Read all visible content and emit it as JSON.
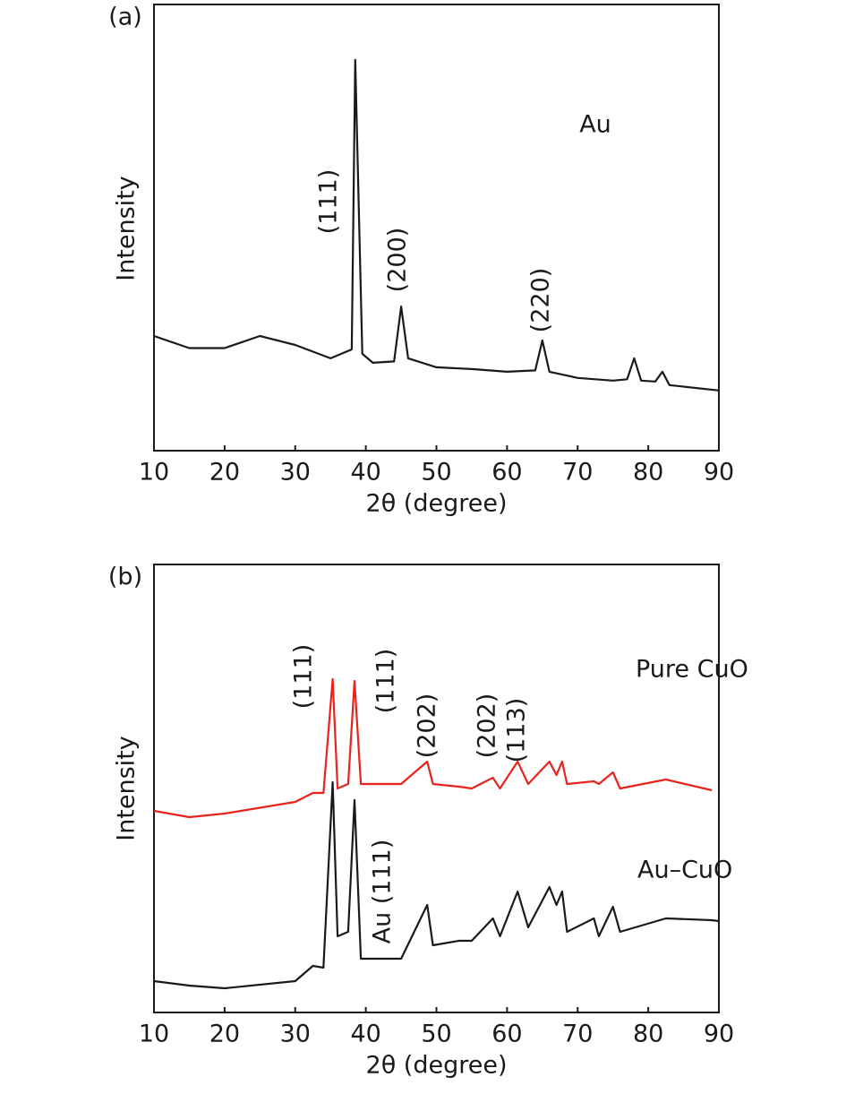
{
  "chart_data": [
    {
      "type": "line",
      "label": "(a)",
      "xlabel": "2θ (degree)",
      "ylabel": "Intensity",
      "xlim": [
        10,
        90
      ],
      "xticks": [
        10,
        20,
        30,
        40,
        50,
        60,
        70,
        80,
        90
      ],
      "ylim": [
        0,
        100
      ],
      "annotations": [
        "Au",
        "(111)",
        "(200)",
        "(220)"
      ],
      "x": [
        10,
        15,
        20,
        25,
        30,
        35,
        38,
        38.5,
        39,
        39.5,
        41,
        44,
        45,
        46,
        50,
        55,
        60,
        64,
        65,
        66,
        70,
        75,
        77,
        78,
        79,
        81,
        82,
        83,
        90
      ],
      "series": [
        {
          "name": "Au",
          "color": "#1a1a1a",
          "values": [
            25.7,
            23,
            23,
            25.7,
            23.7,
            20.7,
            22.7,
            87.6,
            55,
            21.7,
            19.7,
            20,
            32.3,
            20.7,
            18.7,
            18.3,
            17.7,
            18,
            24.7,
            17.7,
            16.3,
            15.7,
            16,
            20.7,
            15.7,
            15.5,
            17.7,
            14.7,
            13.5
          ]
        }
      ]
    },
    {
      "type": "line",
      "label": "(b)",
      "xlabel": "2θ (degree)",
      "ylabel": "Intensity",
      "xlim": [
        10,
        90
      ],
      "xticks": [
        10,
        20,
        30,
        40,
        50,
        60,
        70,
        80,
        90
      ],
      "ylim": [
        0,
        100
      ],
      "annotations": [
        "(111)",
        "(111)",
        "(202)",
        "(202)",
        "(113)",
        "Au (111)"
      ],
      "x": [
        10,
        15,
        20,
        30,
        32.5,
        34,
        35.3,
        36,
        37.5,
        38.4,
        39.3,
        45,
        48.7,
        49.5,
        53.2,
        55,
        58,
        59,
        61.5,
        63,
        66,
        67,
        67.8,
        68.5,
        72.3,
        73,
        75,
        76,
        82.5,
        89,
        90
      ],
      "series": [
        {
          "name": "Pure CuO",
          "color": "#e8231c",
          "values": [
            45,
            43.6,
            44.4,
            47,
            49,
            49,
            74.4,
            50,
            51,
            74,
            51,
            51,
            56,
            51,
            50.4,
            50,
            52.4,
            50,
            56,
            51,
            56,
            53,
            56,
            51,
            51.6,
            51,
            53.6,
            50,
            52,
            49.6,
            null
          ]
        },
        {
          "name": "Au–CuO",
          "color": "#1a1a1a",
          "values": [
            7,
            6,
            5.4,
            7,
            10.4,
            10,
            51.4,
            17,
            18,
            47.4,
            12,
            12,
            24,
            15,
            16,
            16,
            21,
            17,
            27,
            19,
            28,
            24,
            27,
            18,
            21,
            17,
            23.6,
            18,
            21,
            20.6,
            20.4
          ]
        }
      ]
    }
  ]
}
